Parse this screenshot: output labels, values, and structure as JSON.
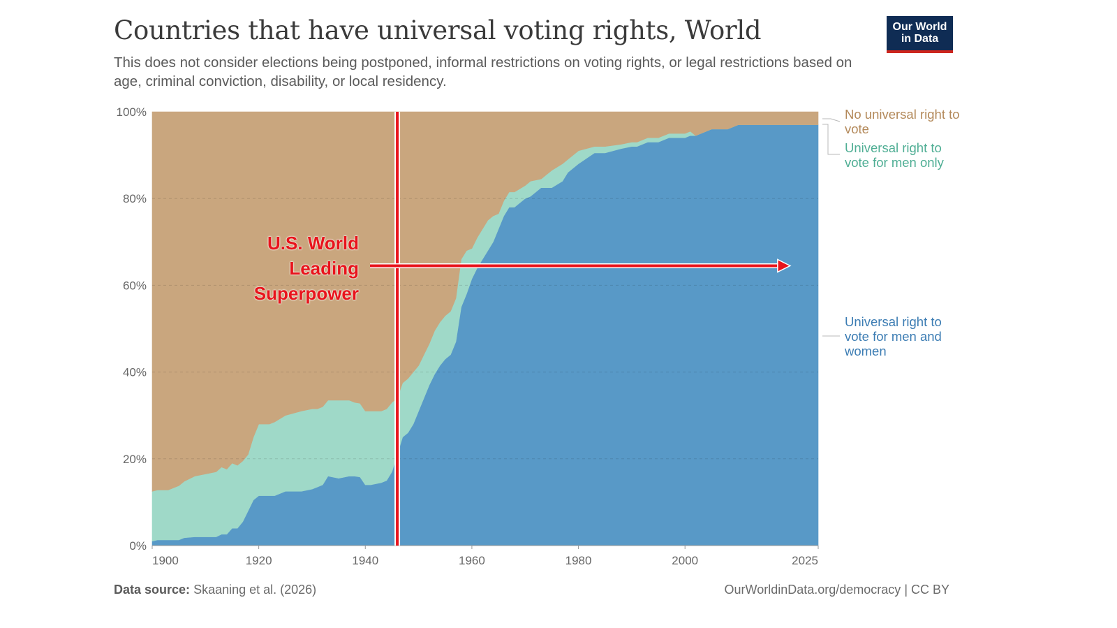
{
  "header": {
    "title": "Countries that have universal voting rights, World",
    "subtitle": "This does not consider elections being postponed, informal restrictions on voting rights, or legal restrictions based on age, criminal conviction, disability, or local residency."
  },
  "logo": {
    "line1": "Our World",
    "line2": "in Data"
  },
  "footer": {
    "source_label": "Data source:",
    "source_value": "Skaaning et al. (2026)",
    "link": "OurWorldinData.org/democracy | CC BY"
  },
  "annotation": {
    "line1": "U.S. World",
    "line2": "Leading",
    "line3": "Superpower",
    "marker_year": 1946,
    "arrow_end_year": 2020,
    "arrow_level": 64.5,
    "color": "#e8141c"
  },
  "chart_data": {
    "type": "area",
    "stacked": true,
    "y_unit": "%",
    "xlim": [
      1900,
      2025
    ],
    "ylim": [
      0,
      100
    ],
    "x_ticks": [
      "1900",
      "1920",
      "1940",
      "1960",
      "1980",
      "2000",
      "2025"
    ],
    "y_ticks": [
      "0%",
      "20%",
      "40%",
      "60%",
      "80%",
      "100%"
    ],
    "grid": "horizontal dashed",
    "x": [
      1900,
      1901,
      1903,
      1905,
      1906,
      1908,
      1910,
      1912,
      1913,
      1914,
      1915,
      1916,
      1917,
      1918,
      1919,
      1920,
      1921,
      1922,
      1923,
      1925,
      1928,
      1930,
      1931,
      1932,
      1933,
      1935,
      1937,
      1938,
      1939,
      1940,
      1941,
      1943,
      1944,
      1945,
      1946,
      1947,
      1948,
      1949,
      1950,
      1951,
      1952,
      1953,
      1954,
      1955,
      1956,
      1957,
      1958,
      1959,
      1960,
      1961,
      1962,
      1963,
      1964,
      1965,
      1966,
      1967,
      1968,
      1970,
      1971,
      1973,
      1974,
      1975,
      1977,
      1978,
      1980,
      1983,
      1985,
      1988,
      1990,
      1991,
      1993,
      1995,
      1997,
      1999,
      2000,
      2001,
      2002,
      2005,
      2008,
      2010,
      2011,
      2015,
      2020,
      2025
    ],
    "series": [
      {
        "name": "Universal right to vote for men and women",
        "color": "#5899c7",
        "values": [
          1,
          1.3,
          1.3,
          1.3,
          1.8,
          2,
          2,
          2,
          2.6,
          2.6,
          4,
          4,
          5.5,
          8,
          10.5,
          11.5,
          11.5,
          11.5,
          11.5,
          12.5,
          12.5,
          13,
          13.5,
          14,
          16,
          15.5,
          16,
          16,
          15.8,
          14,
          14,
          14.5,
          15,
          17,
          21,
          25,
          26,
          28,
          31,
          34,
          37,
          39.5,
          41.5,
          43,
          44,
          47,
          55,
          58,
          61.5,
          64,
          66,
          68,
          70,
          73,
          76,
          78,
          78,
          80,
          80.5,
          82.5,
          82.5,
          82.5,
          84,
          86,
          88,
          90.5,
          90.5,
          91.5,
          92,
          92,
          93,
          93,
          94,
          94,
          94,
          94.5,
          94.5,
          96,
          96,
          97,
          97,
          97,
          97,
          97
        ]
      },
      {
        "name": "Universal right to vote for men only",
        "color": "#9fd9c8",
        "values": [
          11.5,
          11.5,
          11.5,
          12.5,
          13,
          14,
          14.5,
          15,
          15.5,
          15,
          15,
          14.5,
          14,
          13,
          14.5,
          16.5,
          16.5,
          16.5,
          17,
          17.5,
          18.5,
          18.5,
          18,
          18,
          17.5,
          18,
          17.5,
          17,
          17,
          17,
          17,
          16.5,
          16.5,
          16,
          13,
          12.5,
          12.5,
          12,
          10.5,
          10,
          9.5,
          10,
          10,
          10,
          10,
          10,
          11,
          10,
          7,
          7,
          7,
          7,
          6,
          3.5,
          3.5,
          3.5,
          3.5,
          3,
          3.5,
          2,
          3,
          4,
          4,
          3,
          3,
          1.5,
          1.5,
          1,
          1,
          1,
          1,
          1,
          1,
          1,
          1,
          1,
          0,
          0,
          0,
          0,
          0,
          0,
          0,
          0
        ]
      },
      {
        "name": "No universal right to vote",
        "color": "#c9a67e",
        "values": [
          87.5,
          87.2,
          87.2,
          86.2,
          85.2,
          84,
          83.5,
          83,
          81.9,
          82.4,
          81,
          81.5,
          80.5,
          79,
          75,
          72,
          72,
          72,
          71.5,
          70,
          69,
          68.5,
          68.5,
          68,
          66.5,
          66.5,
          66.5,
          67,
          67.2,
          69,
          69,
          69,
          68.5,
          67,
          66,
          62.5,
          61.5,
          60,
          58.5,
          56,
          53.5,
          50.5,
          48.5,
          47,
          46,
          43,
          34,
          32,
          31.5,
          29,
          27,
          25,
          24,
          23.5,
          20.5,
          18.5,
          18.5,
          17,
          16,
          15.5,
          14.5,
          13.5,
          12,
          11,
          9,
          8,
          8,
          7.5,
          7,
          7,
          6,
          6,
          5,
          5,
          5,
          4.5,
          5.5,
          4,
          4,
          3,
          3,
          3,
          3,
          3
        ]
      }
    ]
  }
}
